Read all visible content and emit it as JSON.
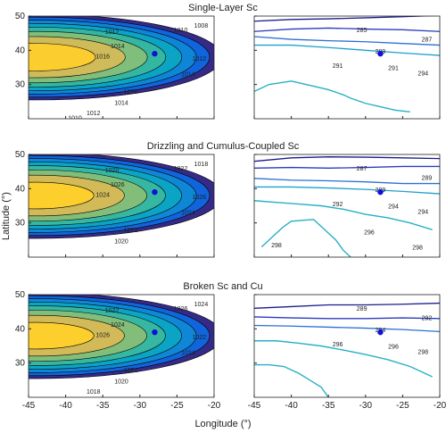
{
  "figure": {
    "xlabel": "Longitude (°)",
    "ylabel": "Latitude (°)"
  },
  "chart_data": [
    {
      "type": "contour",
      "field": "pressure",
      "panel_title": "Single-Layer Sc",
      "xlim": [
        -45,
        -20
      ],
      "ylim": [
        20,
        50
      ],
      "xticks": [
        -45,
        -40,
        -35,
        -30,
        -25,
        -20
      ],
      "yticks": [
        30,
        40,
        50
      ],
      "marker": {
        "lon": -28,
        "lat": 39
      },
      "high": {
        "lon": -44,
        "lat": 38,
        "max": 1017.6,
        "ax": 16,
        "ay": 8,
        "edge_min": 1006
      },
      "contour_labels": [
        "1012",
        "1010",
        "1008",
        "1014",
        "1016",
        "1012",
        "1014",
        "1016",
        "1014",
        "1012",
        "1010"
      ]
    },
    {
      "type": "contour",
      "field": "temperature",
      "xlim": [
        -45,
        -20
      ],
      "ylim": [
        20,
        50
      ],
      "xticks": [
        -45,
        -40,
        -35,
        -30,
        -25,
        -20
      ],
      "yticks": [
        30,
        40,
        50
      ],
      "marker": {
        "lon": -28,
        "lat": 39
      },
      "isolines": [
        {
          "value": 285,
          "lats": [
            48.5,
            49,
            49.2,
            49.5,
            49.8,
            50.2
          ]
        },
        {
          "value": 287,
          "lats": [
            45.5,
            46.2,
            46.5,
            46.2,
            46.0,
            45.5
          ]
        },
        {
          "value": 289,
          "lats": [
            44.0,
            43.2,
            42.8,
            42.5,
            42.0,
            41.5
          ]
        },
        {
          "value": 291,
          "lats": [
            41.5,
            41.5,
            40.8,
            40.0,
            39.2,
            38.5
          ]
        }
      ],
      "low_line": {
        "value": 294,
        "points": [
          [
            -45,
            28
          ],
          [
            -43,
            30
          ],
          [
            -40,
            31
          ],
          [
            -37,
            29.5
          ],
          [
            -35,
            28.5
          ],
          [
            -33,
            27
          ],
          [
            -32,
            26
          ],
          [
            -30,
            24.5
          ],
          [
            -28,
            23.5
          ],
          [
            -26,
            22.5
          ],
          [
            -24,
            22
          ]
        ]
      },
      "contour_labels": [
        "285",
        "287",
        "289",
        "291",
        "291",
        "294"
      ]
    },
    {
      "type": "contour",
      "field": "pressure",
      "panel_title": "Drizzling and Cumulus-Coupled Sc",
      "xlim": [
        -45,
        -20
      ],
      "ylim": [
        20,
        50
      ],
      "xticks": [
        -45,
        -40,
        -35,
        -30,
        -25,
        -20
      ],
      "yticks": [
        30,
        40,
        50
      ],
      "marker": {
        "lon": -28,
        "lat": 39
      },
      "high": {
        "lon": -44,
        "lat": 38,
        "max": 1027.5,
        "ax": 16,
        "ay": 8,
        "edge_min": 1016
      },
      "contour_labels": [
        "1020",
        "1022",
        "1018",
        "1026",
        "1024",
        "1026",
        "1024",
        "1022",
        "1020"
      ]
    },
    {
      "type": "contour",
      "field": "temperature",
      "xlim": [
        -45,
        -20
      ],
      "ylim": [
        20,
        50
      ],
      "xticks": [
        -45,
        -40,
        -35,
        -30,
        -25,
        -20
      ],
      "yticks": [
        30,
        40,
        50
      ],
      "marker": {
        "lon": -28,
        "lat": 39
      },
      "isolines": [
        {
          "value": 287,
          "lats": [
            48.0,
            49.0,
            49.3,
            49.2,
            49.0,
            48.8
          ]
        },
        {
          "value": 289,
          "lats": [
            46.0,
            46.2,
            46.0,
            46.2,
            46.5,
            46.5
          ]
        },
        {
          "value": 292,
          "lats": [
            43.0,
            42.5,
            42.3,
            42.0,
            41.5,
            41.5
          ]
        },
        {
          "value": 294,
          "lats": [
            40.5,
            40.5,
            40.2,
            39.8,
            39.2,
            38.5
          ]
        }
      ],
      "low_line": {
        "value": 296,
        "points": [
          [
            -45,
            36.5
          ],
          [
            -42,
            36
          ],
          [
            -39,
            35.5
          ],
          [
            -36,
            35
          ],
          [
            -33,
            34
          ],
          [
            -30,
            32.5
          ],
          [
            -27,
            31.5
          ],
          [
            -24,
            30
          ],
          [
            -21,
            28
          ]
        ]
      },
      "low_line2": {
        "value": 298,
        "points": [
          [
            -44,
            23
          ],
          [
            -42,
            27
          ],
          [
            -41,
            29
          ],
          [
            -40,
            30.5
          ],
          [
            -37,
            31
          ],
          [
            -36,
            29
          ],
          [
            -35,
            27
          ],
          [
            -34,
            25
          ],
          [
            -33,
            22
          ],
          [
            -32,
            20
          ]
        ]
      },
      "contour_labels": [
        "287",
        "289",
        "289",
        "292",
        "294",
        "294",
        "296",
        "298",
        "298"
      ]
    },
    {
      "type": "contour",
      "field": "pressure",
      "panel_title": "Broken Sc and Cu",
      "xlim": [
        -45,
        -20
      ],
      "ylim": [
        20,
        50
      ],
      "xticks": [
        -45,
        -40,
        -35,
        -30,
        -25,
        -20
      ],
      "yticks": [
        30,
        40,
        50
      ],
      "marker": {
        "lon": -28,
        "lat": 39
      },
      "high": {
        "lon": -44,
        "lat": 38,
        "max": 1027.5,
        "ax": 16,
        "ay": 8,
        "edge_min": 1016
      },
      "contour_labels": [
        "1022",
        "1026",
        "1024",
        "1024",
        "1026",
        "1022",
        "1024",
        "1022",
        "1020",
        "1018"
      ]
    },
    {
      "type": "contour",
      "field": "temperature",
      "xlim": [
        -45,
        -20
      ],
      "ylim": [
        20,
        50
      ],
      "xticks": [
        -45,
        -40,
        -35,
        -30,
        -25,
        -20
      ],
      "yticks": [
        30,
        40,
        50
      ],
      "marker": {
        "lon": -28,
        "lat": 39
      },
      "isolines": [
        {
          "value": 289,
          "lats": [
            46.0,
            46.5,
            47.0,
            47.0,
            47.2,
            47.5
          ]
        },
        {
          "value": 292,
          "lats": [
            43.5,
            43.2,
            43.0,
            43.0,
            43.2,
            43.0
          ]
        },
        {
          "value": 294,
          "lats": [
            41.0,
            40.8,
            40.5,
            40.2,
            39.8,
            39.2
          ]
        }
      ],
      "low_line": {
        "value": 296,
        "points": [
          [
            -45,
            36.5
          ],
          [
            -42,
            36.5
          ],
          [
            -39,
            35.8
          ],
          [
            -36,
            35
          ],
          [
            -33,
            33.8
          ],
          [
            -30,
            32.5
          ],
          [
            -27,
            31
          ],
          [
            -24,
            29
          ],
          [
            -21,
            26
          ]
        ]
      },
      "low_line2": {
        "value": 298,
        "points": [
          [
            -45,
            29.5
          ],
          [
            -43,
            29.5
          ],
          [
            -41,
            29
          ],
          [
            -39,
            27
          ],
          [
            -37.5,
            25
          ],
          [
            -36,
            23
          ],
          [
            -35,
            20
          ]
        ]
      },
      "contour_labels": [
        "289",
        "292",
        "294",
        "296",
        "296",
        "298"
      ]
    }
  ]
}
